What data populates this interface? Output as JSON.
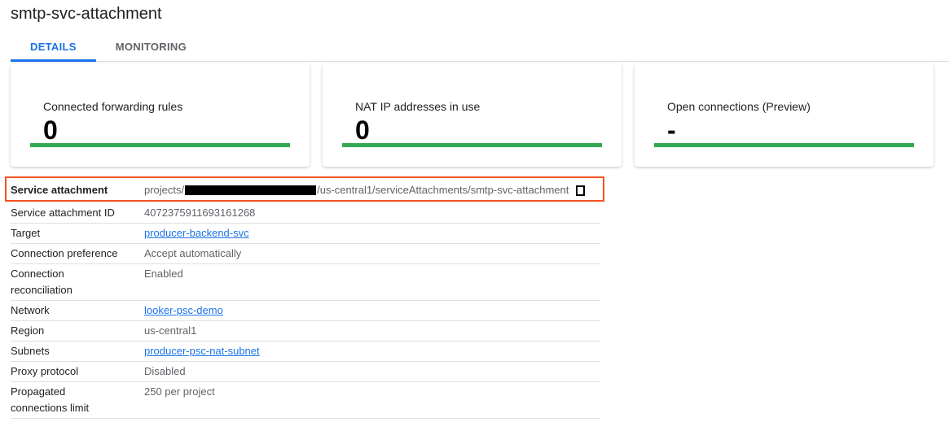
{
  "title": "smtp-svc-attachment",
  "tabs": [
    {
      "label": "DETAILS",
      "active": true
    },
    {
      "label": "MONITORING",
      "active": false
    }
  ],
  "cards": [
    {
      "title": "Connected forwarding rules",
      "value": "0"
    },
    {
      "title": "NAT IP addresses in use",
      "value": "0"
    },
    {
      "title": "Open connections (Preview)",
      "value": "-"
    }
  ],
  "accent_color": "#1a73e8",
  "bar_color": "#34a853",
  "highlight_color": "#f4511e",
  "details": {
    "service_attachment": {
      "label": "Service attachment",
      "prefix": "projects/",
      "suffix": "/us-central1/serviceAttachments/smtp-svc-attachment",
      "icon": "copy-icon"
    },
    "id": {
      "label": "Service attachment ID",
      "value": "4072375911693161268"
    },
    "target": {
      "label": "Target",
      "value": "producer-backend-svc"
    },
    "preference": {
      "label": "Connection preference",
      "value": "Accept automatically"
    },
    "reconciliation": {
      "label": "Connection reconciliation",
      "value": "Enabled"
    },
    "network": {
      "label": "Network",
      "value": "looker-psc-demo"
    },
    "region": {
      "label": "Region",
      "value": "us-central1"
    },
    "subnets": {
      "label": "Subnets",
      "value": "producer-psc-nat-subnet"
    },
    "proxy": {
      "label": "Proxy protocol",
      "value": "Disabled"
    },
    "limit": {
      "label": "Propagated connections limit",
      "value": "250 per project"
    }
  }
}
